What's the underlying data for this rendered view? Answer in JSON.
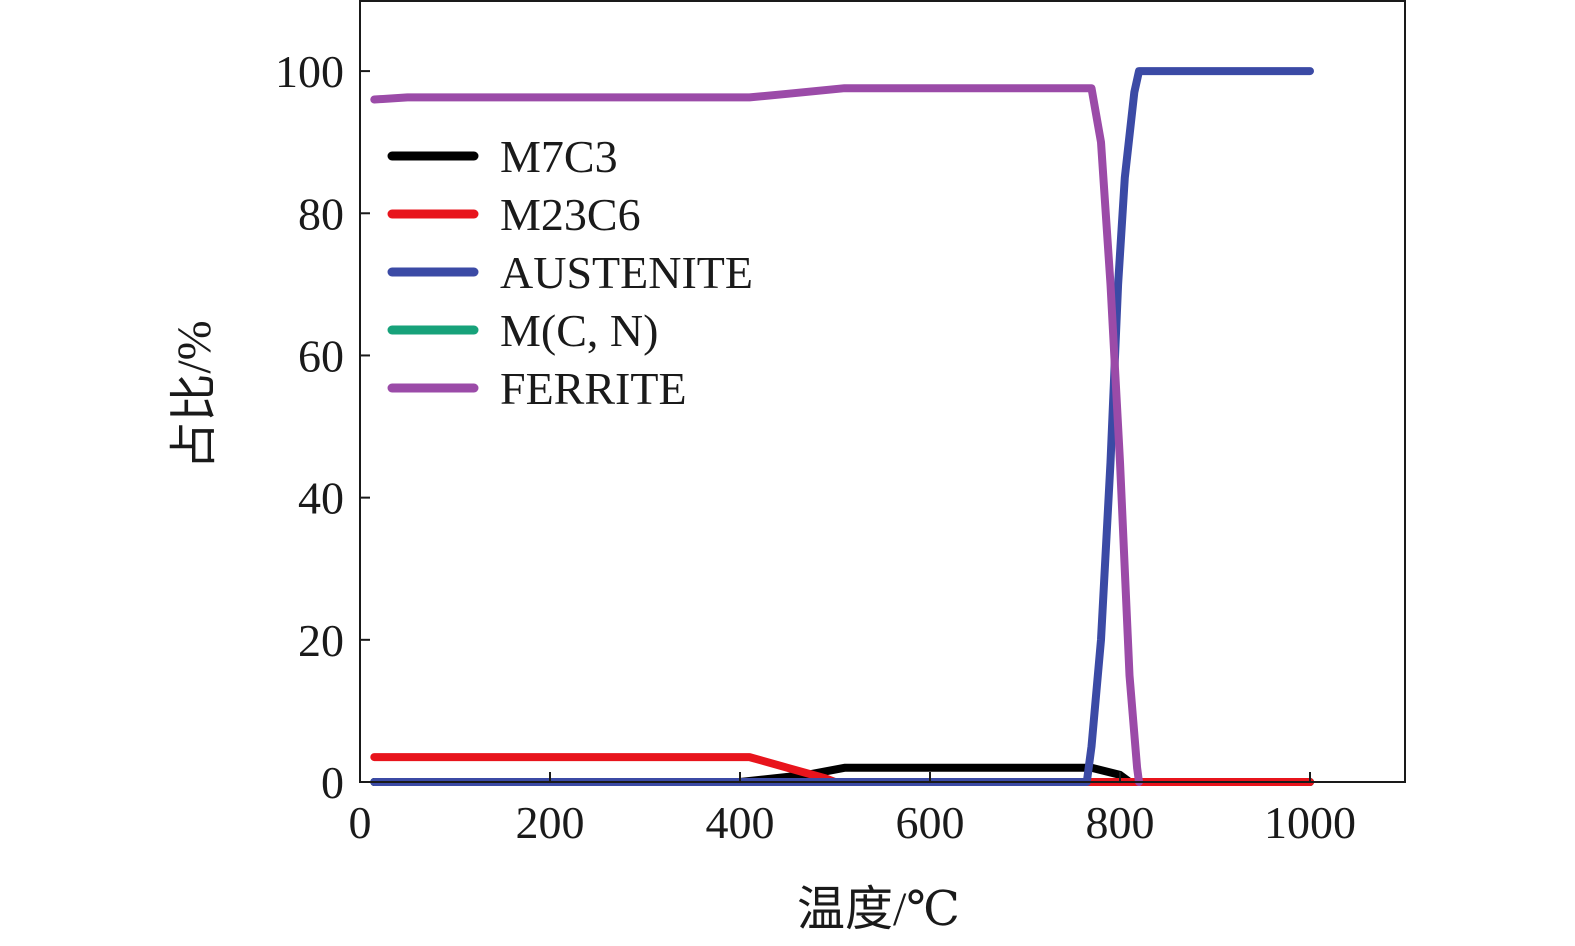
{
  "chart_data": {
    "type": "line",
    "xlabel": "温度/℃",
    "ylabel": "占比/%",
    "xlim": [
      0,
      1100
    ],
    "ylim": [
      0,
      110
    ],
    "xticks": [
      0,
      200,
      400,
      600,
      800,
      1000
    ],
    "yticks": [
      0,
      20,
      40,
      60,
      80,
      100
    ],
    "grid": false,
    "legend_position": "upper-left",
    "series": [
      {
        "name": "M7C3",
        "color": "#000000",
        "points": [
          [
            15,
            0
          ],
          [
            400,
            0
          ],
          [
            470,
            1
          ],
          [
            510,
            2
          ],
          [
            600,
            2
          ],
          [
            700,
            2
          ],
          [
            770,
            2
          ],
          [
            800,
            1
          ],
          [
            810,
            0
          ],
          [
            1000,
            0
          ]
        ]
      },
      {
        "name": "M23C6",
        "color": "#e8141c",
        "points": [
          [
            15,
            3.5
          ],
          [
            100,
            3.5
          ],
          [
            200,
            3.5
          ],
          [
            300,
            3.5
          ],
          [
            410,
            3.5
          ],
          [
            450,
            2
          ],
          [
            490,
            0.5
          ],
          [
            500,
            0
          ],
          [
            1000,
            0
          ]
        ]
      },
      {
        "name": "AUSTENITE",
        "color": "#3b4aa5",
        "points": [
          [
            15,
            0
          ],
          [
            765,
            0
          ],
          [
            770,
            5
          ],
          [
            780,
            20
          ],
          [
            790,
            45
          ],
          [
            798,
            70
          ],
          [
            805,
            85
          ],
          [
            815,
            97
          ],
          [
            820,
            100
          ],
          [
            1000,
            100
          ]
        ]
      },
      {
        "name": "M(C, N)",
        "color": "#17a27a",
        "points": [
          [
            15,
            0
          ],
          [
            1000,
            0
          ]
        ]
      },
      {
        "name": "FERRITE",
        "color": "#9b4ba8",
        "points": [
          [
            15,
            96
          ],
          [
            50,
            96.3
          ],
          [
            100,
            96.3
          ],
          [
            200,
            96.3
          ],
          [
            300,
            96.3
          ],
          [
            410,
            96.3
          ],
          [
            450,
            96.8
          ],
          [
            510,
            97.6
          ],
          [
            600,
            97.6
          ],
          [
            700,
            97.6
          ],
          [
            770,
            97.6
          ],
          [
            780,
            90
          ],
          [
            790,
            70
          ],
          [
            800,
            45
          ],
          [
            810,
            15
          ],
          [
            818,
            2
          ],
          [
            820,
            0
          ]
        ]
      }
    ]
  }
}
